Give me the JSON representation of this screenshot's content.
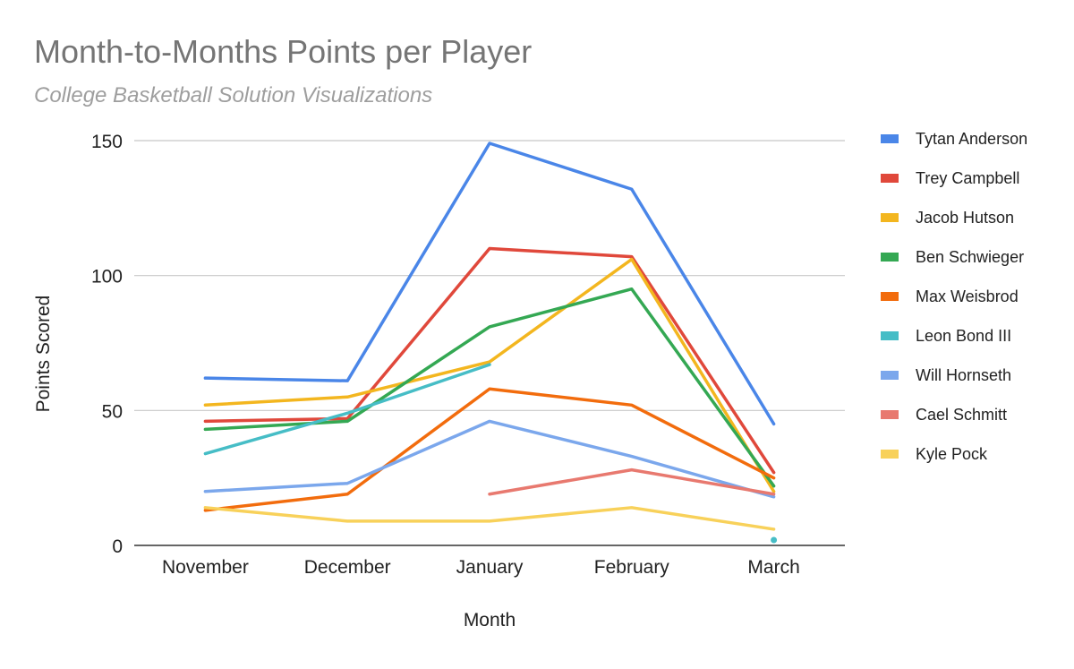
{
  "chart_data": {
    "type": "line",
    "title": "Month-to-Months Points per Player",
    "subtitle": "College Basketball Solution Visualizations",
    "xlabel": "Month",
    "ylabel": "Points Scored",
    "categories": [
      "November",
      "December",
      "January",
      "February",
      "March"
    ],
    "ylim": [
      0,
      150
    ],
    "yticks": [
      0,
      50,
      100,
      150
    ],
    "grid": true,
    "legend_position": "right",
    "series": [
      {
        "name": "Tytan Anderson",
        "color": "#4a86e8",
        "values": [
          62,
          61,
          149,
          132,
          45
        ]
      },
      {
        "name": "Trey Campbell",
        "color": "#e0483b",
        "values": [
          46,
          47,
          110,
          107,
          27
        ]
      },
      {
        "name": "Jacob Hutson",
        "color": "#f3b61f",
        "values": [
          52,
          55,
          68,
          106,
          20
        ]
      },
      {
        "name": "Ben Schwieger",
        "color": "#34a853",
        "values": [
          43,
          46,
          81,
          95,
          22
        ]
      },
      {
        "name": "Max Weisbrod",
        "color": "#f26c0d",
        "values": [
          13,
          19,
          58,
          52,
          25
        ]
      },
      {
        "name": "Leon Bond III",
        "color": "#46bdc6",
        "values": [
          34,
          49,
          67,
          null,
          2
        ]
      },
      {
        "name": "Will Hornseth",
        "color": "#7ba7ec",
        "values": [
          20,
          23,
          46,
          33,
          18
        ]
      },
      {
        "name": "Cael Schmitt",
        "color": "#e8796f",
        "values": [
          null,
          null,
          19,
          28,
          19
        ]
      },
      {
        "name": "Kyle Pock",
        "color": "#f8d15a",
        "values": [
          14,
          9,
          9,
          14,
          6
        ]
      }
    ]
  }
}
